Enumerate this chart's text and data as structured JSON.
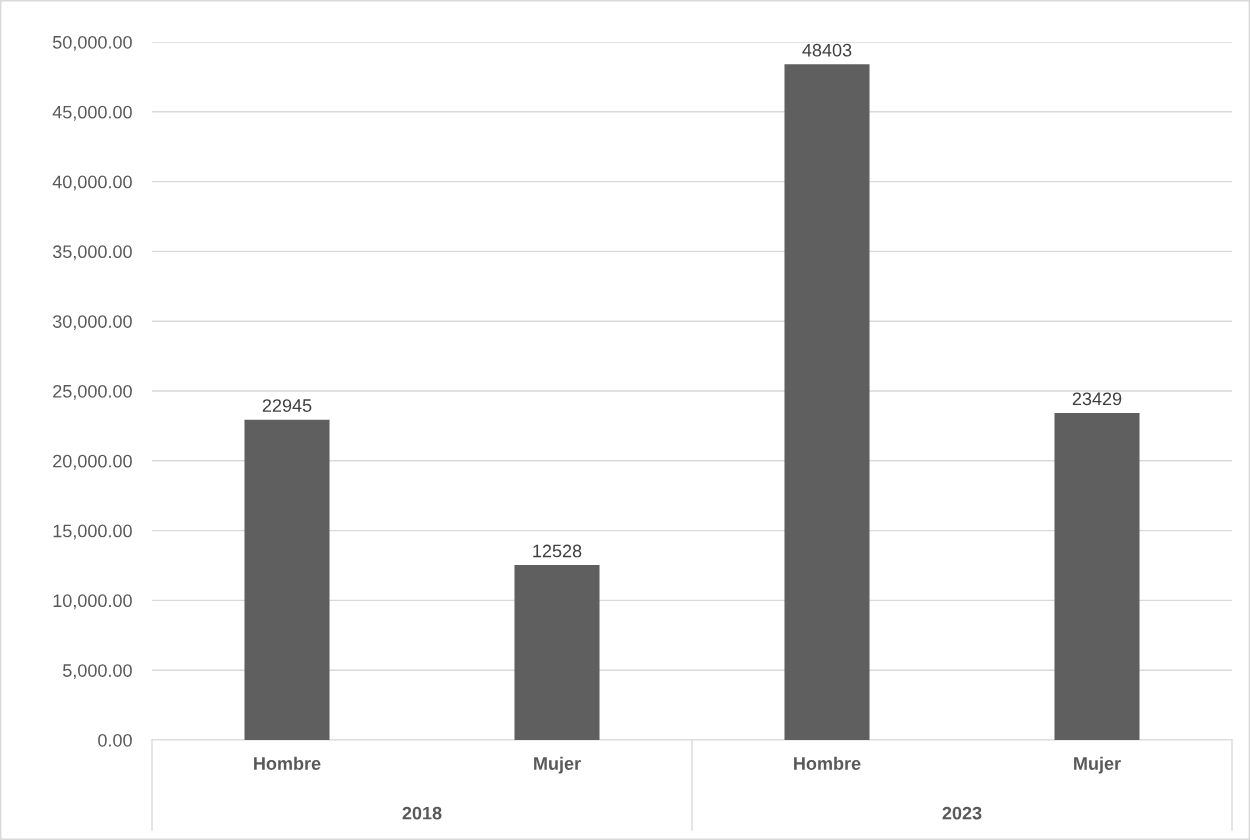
{
  "chart_data": {
    "type": "bar",
    "categories": [
      "Hombre",
      "Mujer",
      "Hombre",
      "Mujer"
    ],
    "values": [
      22945,
      12528,
      48403,
      23429
    ],
    "color": "#5f5f5f",
    "data_labels": true,
    "ylim": [
      0,
      50000
    ],
    "yticks": [
      {
        "value": 0,
        "label": "0.00"
      },
      {
        "value": 5000,
        "label": "5,000.00"
      },
      {
        "value": 10000,
        "label": "10,000.00"
      },
      {
        "value": 15000,
        "label": "15,000.00"
      },
      {
        "value": 20000,
        "label": "20,000.00"
      },
      {
        "value": 25000,
        "label": "25,000.00"
      },
      {
        "value": 30000,
        "label": "30,000.00"
      },
      {
        "value": 35000,
        "label": "35,000.00"
      },
      {
        "value": 40000,
        "label": "40,000.00"
      },
      {
        "value": 45000,
        "label": "45,000.00"
      },
      {
        "value": 50000,
        "label": "50,000.00"
      }
    ],
    "annotations": [
      "2018",
      "2023"
    ],
    "grid": "y",
    "legend": false
  }
}
